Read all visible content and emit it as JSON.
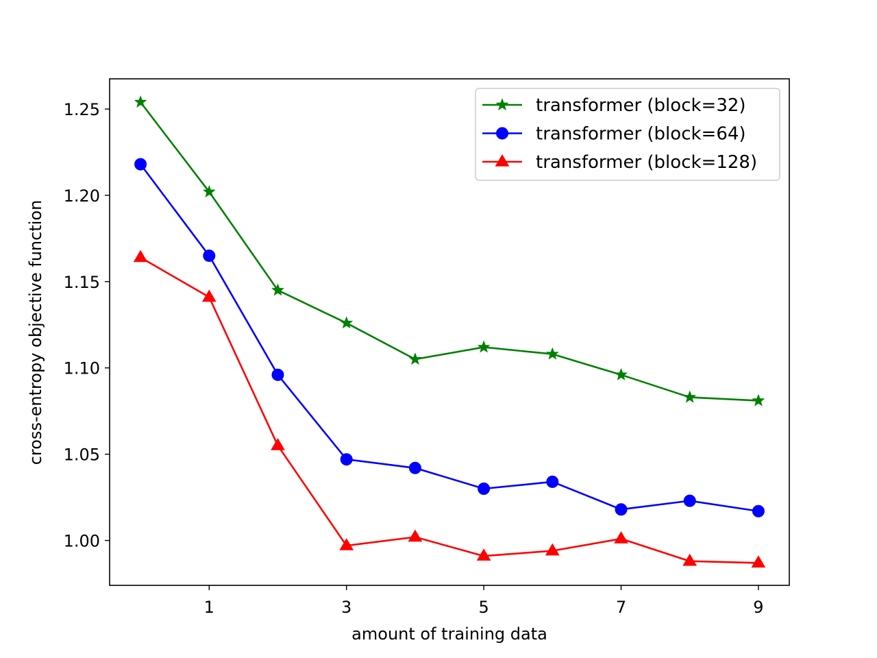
{
  "chart_data": {
    "type": "line",
    "title": "",
    "xlabel": "amount of training data",
    "ylabel": "cross-entropy objective function",
    "x": [
      0,
      1,
      2,
      3,
      4,
      5,
      6,
      7,
      8,
      9
    ],
    "xticks": [
      "1",
      "3",
      "5",
      "7",
      "9"
    ],
    "xtick_values": [
      1,
      3,
      5,
      7,
      9
    ],
    "yticks": [
      "1.00",
      "1.05",
      "1.10",
      "1.15",
      "1.20",
      "1.25"
    ],
    "ytick_values": [
      1.0,
      1.05,
      1.1,
      1.15,
      1.2,
      1.25
    ],
    "xlim": [
      -0.45,
      9.45
    ],
    "ylim": [
      0.974,
      1.2675
    ],
    "grid": false,
    "legend_position": "top-right",
    "series": [
      {
        "name": "transformer (block=32)",
        "color": "#008000",
        "marker": "star",
        "values": [
          1.254,
          1.202,
          1.145,
          1.126,
          1.105,
          1.112,
          1.108,
          1.096,
          1.083,
          1.081
        ]
      },
      {
        "name": "transformer (block=64)",
        "color": "#0000ff",
        "marker": "circle",
        "values": [
          1.218,
          1.165,
          1.096,
          1.047,
          1.042,
          1.03,
          1.034,
          1.018,
          1.023,
          1.017
        ]
      },
      {
        "name": "transformer (block=128)",
        "color": "#ff0000",
        "marker": "triangle",
        "values": [
          1.164,
          1.141,
          1.055,
          0.997,
          1.002,
          0.991,
          0.994,
          1.001,
          0.988,
          0.987
        ]
      }
    ]
  }
}
